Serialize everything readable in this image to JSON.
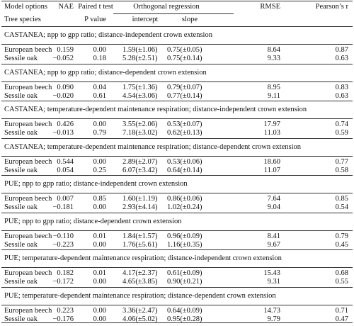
{
  "table": {
    "header": {
      "row1": [
        "Model options",
        "NAE",
        "Paired t test",
        "Orthogonal regression",
        "RMSE",
        "Pearson’s r"
      ],
      "row2": [
        "Tree species",
        "P value",
        "intercept",
        "slope"
      ]
    },
    "groups": [
      {
        "title": "CASTANEA; npp to gpp ratio; distance-independent crown extension",
        "rows": [
          [
            "European beech",
            "0.159",
            "0.00",
            "1.59(±1.06)",
            "0.75(±0.05)",
            "8.64",
            "0.87"
          ],
          [
            "Sessile oak",
            "−0.052",
            "0.18",
            "5.28(±2.51)",
            "0.75(±0.14)",
            "9.33",
            "0.63"
          ]
        ]
      },
      {
        "title": "CASTANEA; npp to gpp ratio; distance-dependent crown extension",
        "rows": [
          [
            "European beech",
            "0.090",
            "0.04",
            "1.75(±1.36)",
            "0.79(±0.07)",
            "8.95",
            "0.83"
          ],
          [
            "Sessile oak",
            "−0.020",
            "0.61",
            "4.54(±3.06)",
            "0.77(±0.14)",
            "9.11",
            "0.63"
          ]
        ]
      },
      {
        "title": "CASTANEA; temperature-dependent maintenance respiration; distance-independent crown extension",
        "rows": [
          [
            "European beech",
            "0.426",
            "0.00",
            "3.55(±2.06)",
            "0.53(±0.07)",
            "17.97",
            "0.74"
          ],
          [
            "Sessile oak",
            "−0.013",
            "0.79",
            "7.18(±3.02)",
            "0.62(±0.13)",
            "11.03",
            "0.59"
          ]
        ]
      },
      {
        "title": "CASTANEA; temperature-dependent maintenance respiration; distance-dependent crown extension",
        "rows": [
          [
            "European beech",
            "0.544",
            "0.00",
            "2.89(±2.07)",
            "0.53(±0.06)",
            "18.60",
            "0.77"
          ],
          [
            "Sessile oak",
            "0.054",
            "0.25",
            "6.07(±3.42)",
            "0.64(±0.14)",
            "11.07",
            "0.58"
          ]
        ]
      },
      {
        "title": "PUE; npp to gpp ratio; distance-independent crown extension",
        "rows": [
          [
            "European beech",
            "0.007",
            "0.85",
            "1.60(±1.19)",
            "0.86(±0.06)",
            "7.64",
            "0.85"
          ],
          [
            "Sessile oak",
            "−0.181",
            "0.00",
            "2.93(±4.14)",
            "1.02(±0.24)",
            "9.04",
            "0.54"
          ]
        ]
      },
      {
        "title": "PUE; npp to gpp ratio; distance-dependent crown extension",
        "rows": [
          [
            "European beech",
            "−0.110",
            "0.01",
            "1.84(±1.57)",
            "0.96(±0.09)",
            "8.41",
            "0.79"
          ],
          [
            "Sessile oak",
            "−0.223",
            "0.00",
            "1.76(±5.61)",
            "1.16(±0.35)",
            "9.67",
            "0.45"
          ]
        ]
      },
      {
        "title": "PUE; temperature-dependent maintenance respiration; distance-independent crown extension",
        "rows": [
          [
            "European beech",
            "0.182",
            "0.01",
            "4.17(±2.37)",
            "0.61(±0.09)",
            "15.43",
            "0.68"
          ],
          [
            "Sessile oak",
            "−0.172",
            "0.00",
            "4.65(±3.85)",
            "0.90(±0.21)",
            "9.31",
            "0.55"
          ]
        ]
      },
      {
        "title": "PUE; temperature-dependent maintenance respiration; distance-dependent crown extension",
        "rows": [
          [
            "European beech",
            "0.223",
            "0.00",
            "3.36(±2.47)",
            "0.64(±0.09)",
            "14.73",
            "0.71"
          ],
          [
            "Sessile oak",
            "−0.176",
            "0.00",
            "4.06(±5.02)",
            "0.95(±0.28)",
            "9.79",
            "0.47"
          ]
        ]
      }
    ]
  }
}
